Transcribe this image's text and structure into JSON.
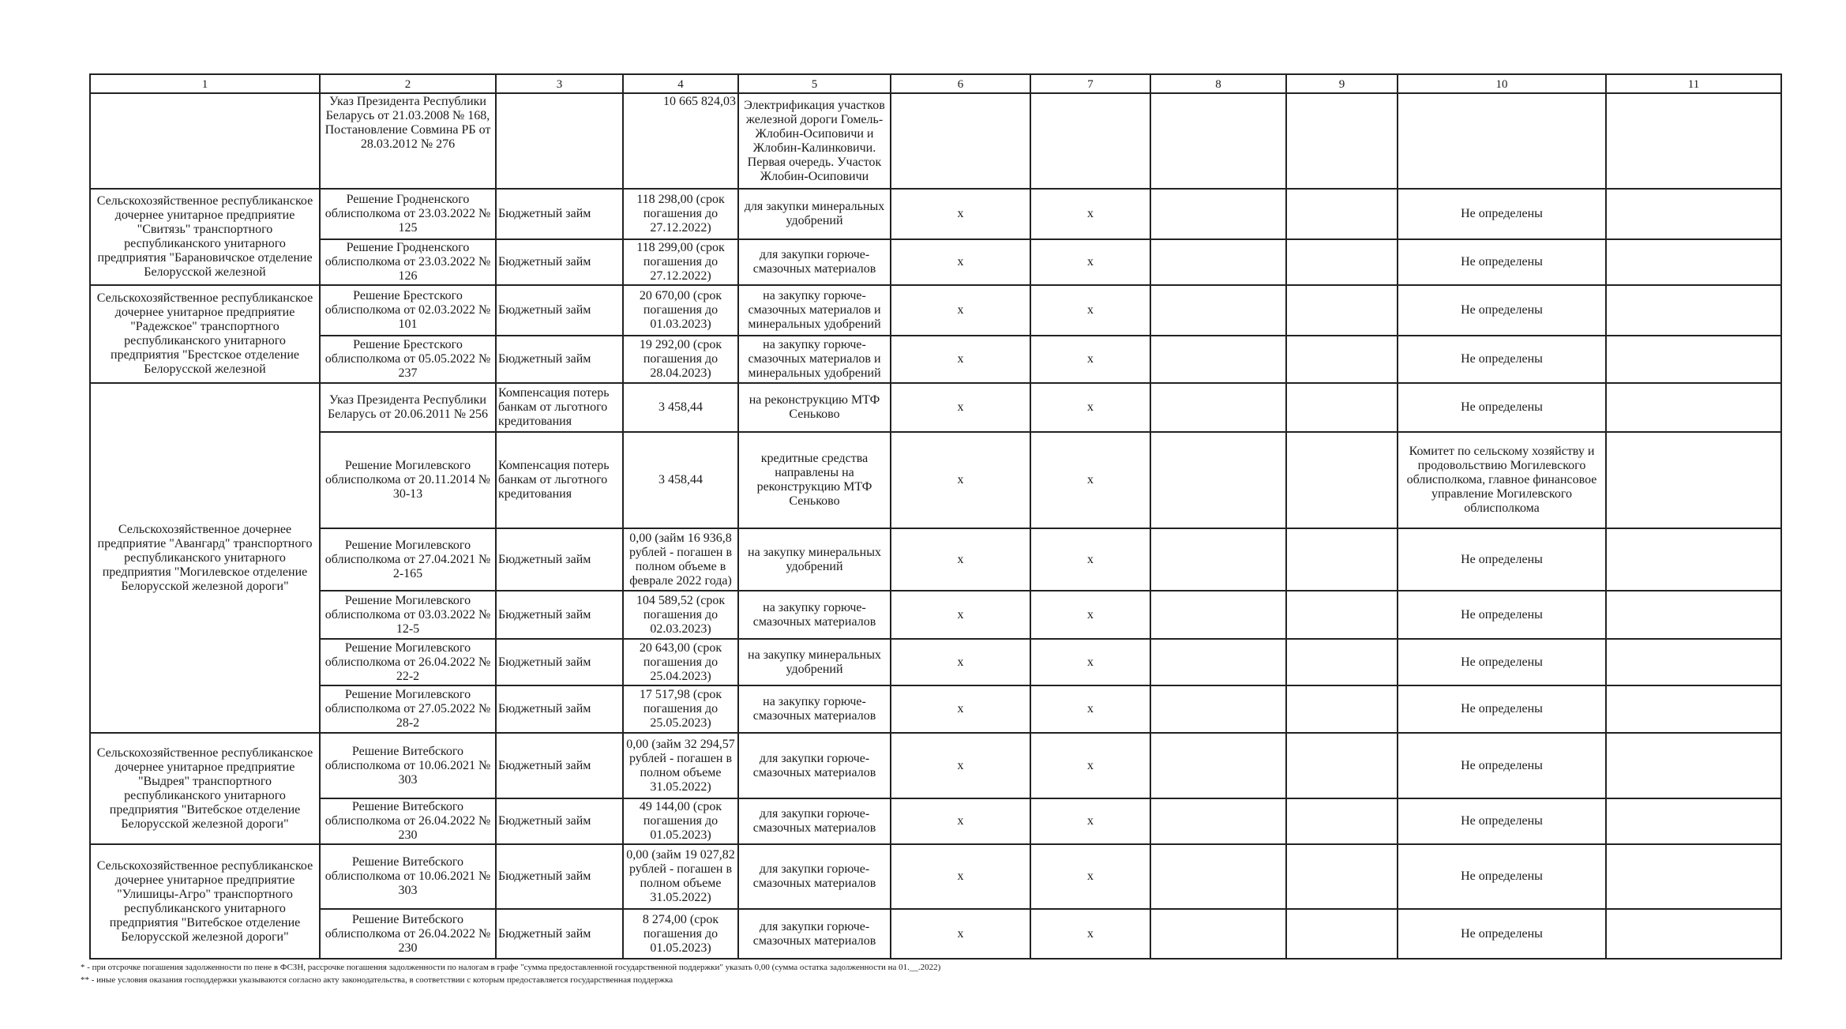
{
  "column_numbers": [
    "1",
    "2",
    "3",
    "4",
    "5",
    "6",
    "7",
    "8",
    "9",
    "10",
    "11"
  ],
  "rows": [
    {
      "org": "",
      "org_rowspan": 1,
      "basis": "Указ Президента Республики Беларусь от 21.03.2008 № 168, Постановление Совмина РБ от 28.03.2012 № 276",
      "form": "",
      "amount": "10 665 824,03",
      "purpose": "Электрификация участков железной дороги Гомель-Жлобин-Осиповичи и Жлобин-Калинковичи. Первая очередь. Участок Жлобин-Осиповичи",
      "c6": "",
      "c7": "",
      "c10": ""
    },
    {
      "org": "Сельскохозяйственное республиканское дочернее унитарное предприятие \"Свитязь\" транспортного республиканского унитарного предприятия \"Барановичское отделение Белорусской железной",
      "org_rowspan": 2,
      "basis": "Решение Гродненского облисполкома от 23.03.2022 № 125",
      "form": "Бюджетный займ",
      "amount": "118 298,00 (срок погашения до 27.12.2022)",
      "purpose": "для закупки минеральных удобрений",
      "c6": "x",
      "c7": "x",
      "c10": "Не определены"
    },
    {
      "basis": "Решение Гродненского облисполкома от 23.03.2022 № 126",
      "form": "Бюджетный займ",
      "amount": "118 299,00 (срок погашения до 27.12.2022)",
      "purpose": "для закупки горюче-смазочных материалов",
      "c6": "x",
      "c7": "x",
      "c10": "Не определены"
    },
    {
      "org": "Сельскохозяйственное республиканское дочернее унитарное предприятие \"Радежское\" транспортного республиканского унитарного предприятия \"Брестское отделение Белорусской железной",
      "org_rowspan": 2,
      "basis": "Решение Брестского облисполкома от 02.03.2022 № 101",
      "form": "Бюджетный займ",
      "amount": "20 670,00 (срок погашения до 01.03.2023)",
      "purpose": "на закупку горюче-смазочных материалов и минеральных удобрений",
      "c6": "x",
      "c7": "x",
      "c10": "Не определены"
    },
    {
      "basis": "Решение Брестского облисполкома от 05.05.2022 № 237",
      "form": "Бюджетный займ",
      "amount": "19 292,00 (срок погашения до 28.04.2023)",
      "purpose": "на закупку горюче-смазочных материалов и минеральных удобрений",
      "c6": "x",
      "c7": "x",
      "c10": "Не определены"
    },
    {
      "org": "Сельскохозяйственное дочернее предприятие \"Авангард\" транспортного республиканского унитарного предприятия \"Могилевское отделение Белорусской железной дороги\"",
      "org_rowspan": 6,
      "basis": "Указ Президента Республики Беларусь от 20.06.2011 № 256",
      "form": "Компенсация потерь банкам от льготного кредитования",
      "amount": "3 458,44",
      "purpose": "на реконструкцию МТФ Сеньково",
      "c6": "x",
      "c7": "x",
      "c10": "Не определены"
    },
    {
      "basis": "Решение Могилевского облисполкома от 20.11.2014 № 30-13",
      "form": "Компенсация потерь банкам от льготного кредитования",
      "amount": "3 458,44",
      "purpose": "кредитные средства направлены на реконструкцию МТФ Сеньково",
      "c6": "x",
      "c7": "x",
      "c10": "Комитет по сельскому хозяйству и продовольствию Могилевского облисполкома, главное финансовое управление Могилевского облисполкома"
    },
    {
      "basis": "Решение Могилевского облисполкома от 27.04.2021 № 2-165",
      "form": "Бюджетный займ",
      "amount": "0,00 (займ 16 936,8 рублей - погашен в полном объеме в феврале 2022 года)",
      "purpose": "на закупку минеральных удобрений",
      "c6": "x",
      "c7": "x",
      "c10": "Не определены"
    },
    {
      "basis": "Решение Могилевского облисполкома от 03.03.2022 № 12-5",
      "form": "Бюджетный займ",
      "amount": "104 589,52 (срок погашения до 02.03.2023)",
      "purpose": "на закупку горюче-смазочных материалов",
      "c6": "x",
      "c7": "x",
      "c10": "Не определены"
    },
    {
      "basis": "Решение Могилевского облисполкома от 26.04.2022 № 22-2",
      "form": "Бюджетный займ",
      "amount": "20 643,00 (срок погашения до 25.04.2023)",
      "purpose": "на закупку минеральных удобрений",
      "c6": "x",
      "c7": "x",
      "c10": "Не определены"
    },
    {
      "basis": "Решение Могилевского облисполкома от 27.05.2022 № 28-2",
      "form": "Бюджетный займ",
      "amount": "17 517,98 (срок погашения до 25.05.2023)",
      "purpose": "на закупку горюче-смазочных материалов",
      "c6": "x",
      "c7": "x",
      "c10": "Не определены"
    },
    {
      "org": "Сельскохозяйственное республиканское дочернее унитарное предприятие \"Выдрея\" транспортного республиканского унитарного предприятия \"Витебское отделение Белорусской железной дороги\"",
      "org_rowspan": 2,
      "basis": "Решение Витебского облисполкома от 10.06.2021 № 303",
      "form": "Бюджетный займ",
      "amount": "0,00 (займ 32 294,57 рублей - погашен в полном объеме 31.05.2022)",
      "purpose": "для закупки горюче-смазочных материалов",
      "c6": "x",
      "c7": "x",
      "c10": "Не определены"
    },
    {
      "basis": "Решение Витебского облисполкома от 26.04.2022 № 230",
      "form": "Бюджетный займ",
      "amount": "49 144,00 (срок погашения до 01.05.2023)",
      "purpose": "для закупки горюче-смазочных материалов",
      "c6": "x",
      "c7": "x",
      "c10": "Не определены"
    },
    {
      "org": "Сельскохозяйственное республиканское дочернее унитарное предприятие \"Улишицы-Агро\" транспортного республиканского унитарного предприятия \"Витебское отделение Белорусской железной дороги\"",
      "org_rowspan": 2,
      "basis": "Решение Витебского облисполкома от 10.06.2021 № 303",
      "form": "Бюджетный займ",
      "amount": "0,00 (займ 19 027,82 рублей - погашен в полном объеме 31.05.2022)",
      "purpose": "для закупки горюче-смазочных материалов",
      "c6": "x",
      "c7": "x",
      "c10": "Не определены"
    },
    {
      "basis": "Решение Витебского облисполкома от 26.04.2022 № 230",
      "form": "Бюджетный займ",
      "amount": "8 274,00 (срок погашения до 01.05.2023)",
      "purpose": "для закупки горюче-смазочных материалов",
      "c6": "x",
      "c7": "x",
      "c10": "Не определены"
    }
  ],
  "footnotes": [
    "* - при отсрочке погашения задолженности по пене в ФСЗН, рассрочке погашения задолженности по налогам в графе \"сумма предоставленной государственной поддержки\" указать 0,00 (сумма остатка задолженности на 01.__.2022)",
    "** - иные условия оказания господдержки указываются согласно акту законодательства, в соответствии с которым предоставляется государственная поддержка"
  ]
}
